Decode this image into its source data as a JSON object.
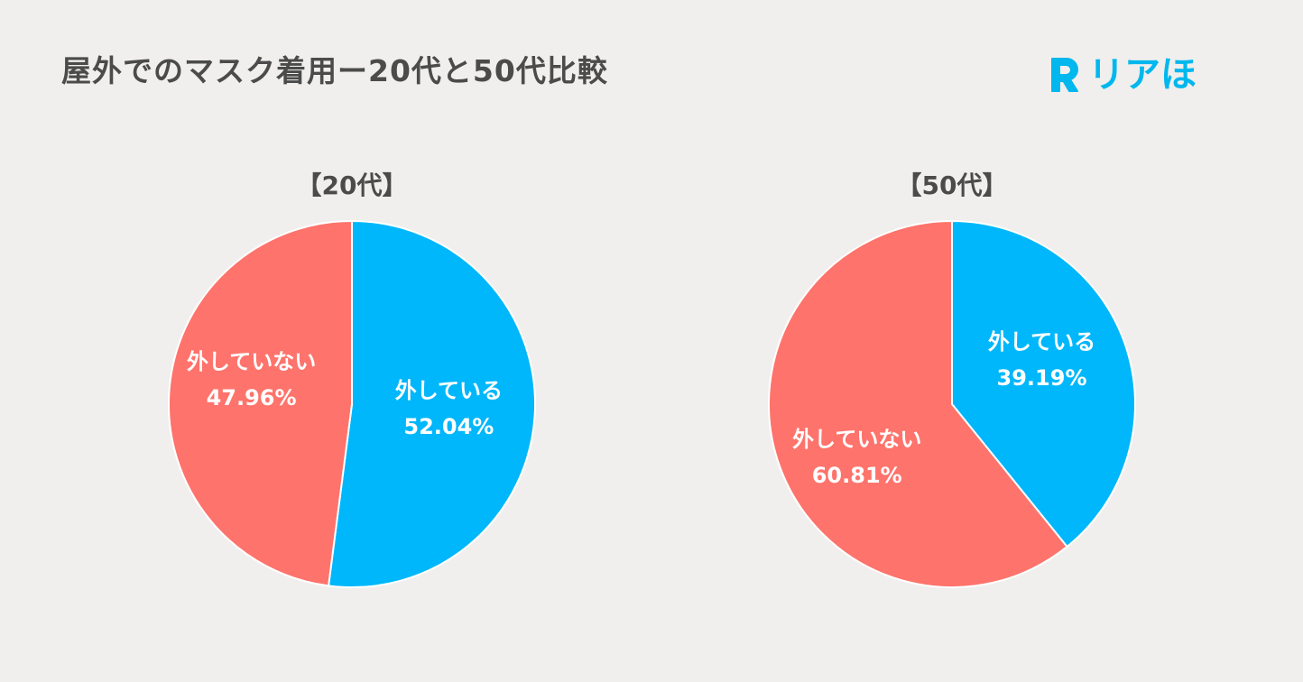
{
  "header": {
    "title": "屋外でのマスク着用ー20代と50代比較"
  },
  "logo": {
    "text": "リアほ",
    "color": "#00b7ee"
  },
  "colors": {
    "background": "#f0efed",
    "blue": "#00b7fb",
    "red": "#fe736b",
    "title": "#4b4b4b"
  },
  "chart_data": [
    {
      "type": "pie",
      "title": "【20代】",
      "slices": [
        {
          "label": "外している",
          "value": 52.04,
          "value_label": "52.04%",
          "color": "#00b7fb"
        },
        {
          "label": "外していない",
          "value": 47.96,
          "value_label": "47.96%",
          "color": "#fe736b"
        }
      ]
    },
    {
      "type": "pie",
      "title": "【50代】",
      "slices": [
        {
          "label": "外している",
          "value": 39.19,
          "value_label": "39.19%",
          "color": "#00b7fb"
        },
        {
          "label": "外していない",
          "value": 60.81,
          "value_label": "60.81%",
          "color": "#fe736b"
        }
      ]
    }
  ]
}
